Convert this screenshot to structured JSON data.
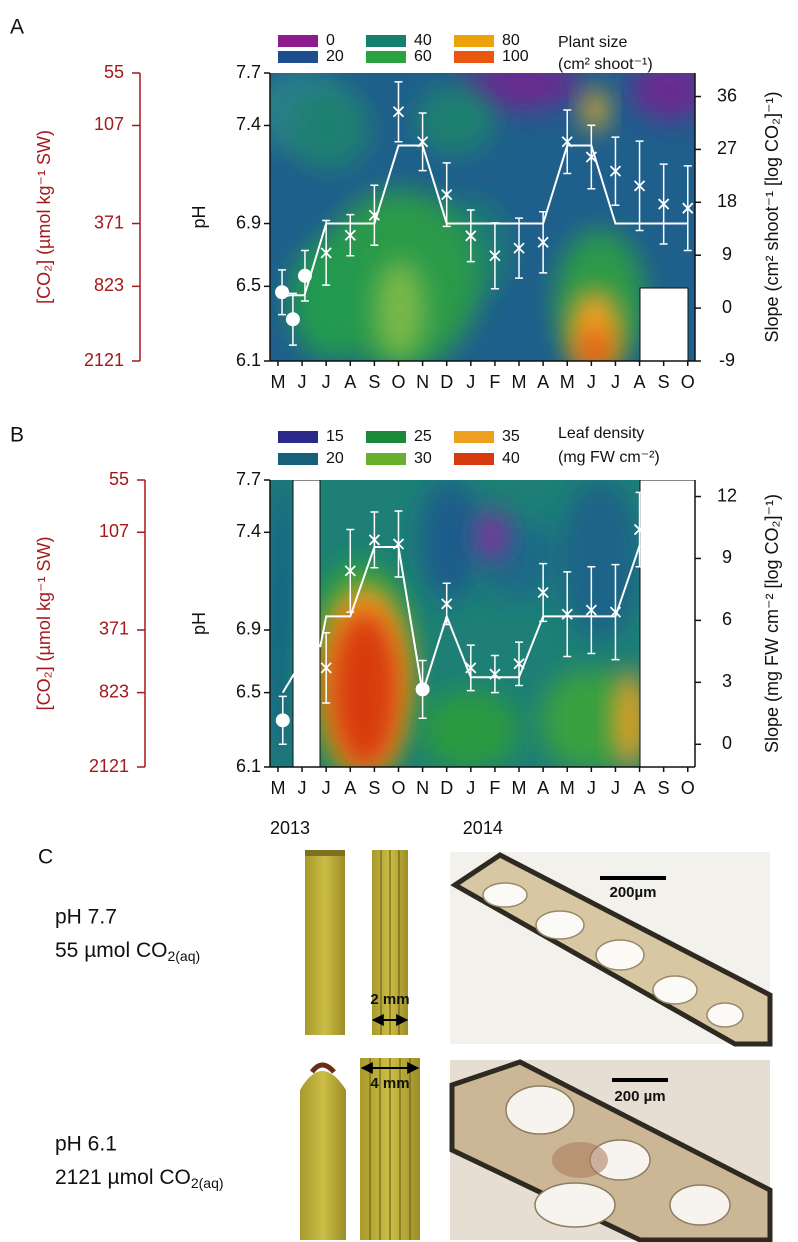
{
  "chart_data": [
    {
      "type": "line",
      "panel_label": "A",
      "legend_title": [
        "Plant size",
        "(cm² shoot⁻¹)"
      ],
      "scale": {
        "values": [
          0,
          20,
          40,
          60,
          80,
          100
        ],
        "colors": [
          "#8e1b8e",
          "#1d4f8f",
          "#177f6e",
          "#2aa23f",
          "#eea20a",
          "#e8560f"
        ]
      },
      "xlim": [
        -0.33,
        17.3
      ],
      "xticks": [
        {
          "value": 0,
          "label": "M"
        },
        {
          "value": 1,
          "label": "J"
        },
        {
          "value": 2,
          "label": "J"
        },
        {
          "value": 3,
          "label": "A"
        },
        {
          "value": 4,
          "label": "S"
        },
        {
          "value": 5,
          "label": "O"
        },
        {
          "value": 6,
          "label": "N"
        },
        {
          "value": 7,
          "label": "D"
        },
        {
          "value": 8,
          "label": "J"
        },
        {
          "value": 9,
          "label": "F"
        },
        {
          "value": 10,
          "label": "M"
        },
        {
          "value": 11,
          "label": "A"
        },
        {
          "value": 12,
          "label": "M"
        },
        {
          "value": 13,
          "label": "J"
        },
        {
          "value": 14,
          "label": "J"
        },
        {
          "value": 15,
          "label": "A"
        },
        {
          "value": 16,
          "label": "S"
        },
        {
          "value": 17,
          "label": "O"
        }
      ],
      "ylabel": "pH",
      "co2_label": "[CO₂] (µmol kg⁻¹ SW)",
      "log_y": true,
      "ylim": [
        2121,
        55
      ],
      "yticks": [
        55,
        107,
        371,
        823,
        2121
      ],
      "ph_ticks": [
        {
          "value": 55,
          "label": "7.7"
        },
        {
          "value": 107,
          "label": "7.4"
        },
        {
          "value": 371,
          "label": "6.9"
        },
        {
          "value": 823,
          "label": "6.5"
        },
        {
          "value": 2121,
          "label": "6.1"
        }
      ],
      "y2label": "Slope (cm² shoot⁻¹ [log CO₂]⁻¹)",
      "y2lim": [
        -9,
        40
      ],
      "y2ticks": [
        -9,
        0,
        9,
        18,
        27,
        36
      ],
      "series": [
        {
          "axis": "y2",
          "color": "#ffffff",
          "x": [
            0.17,
            0.62,
            1.12,
            2,
            3,
            4,
            5,
            6,
            7,
            8,
            9,
            10,
            11,
            12,
            13,
            14,
            15,
            16,
            17
          ],
          "values": [
            2.7,
            -1.9,
            5.5,
            9.4,
            12.4,
            15.8,
            33.4,
            28.3,
            19.3,
            12.3,
            8.9,
            10.2,
            11.2,
            28.3,
            25.7,
            23.3,
            20.8,
            17.7,
            17.0
          ],
          "errors": [
            3.8,
            4.4,
            4.3,
            5.5,
            3.5,
            5.1,
            5.1,
            4.9,
            5.4,
            4.4,
            5.6,
            5.1,
            5.2,
            5.4,
            5.4,
            5.8,
            7.6,
            6.8,
            7.2
          ],
          "markers": [
            "circle",
            "circle",
            "circle",
            "x",
            "x",
            "x",
            "x",
            "x",
            "x",
            "x",
            "x",
            "x",
            "x",
            "x",
            "x",
            "x",
            "x",
            "x",
            "x"
          ]
        },
        {
          "color": "#ffffff",
          "x": [
            0,
            0.5,
            1.1,
            2,
            3,
            4,
            5,
            6,
            7,
            8,
            9,
            10,
            11,
            12,
            13,
            14,
            15,
            16,
            17
          ],
          "values": [
            950,
            921,
            921,
            371,
            371,
            371,
            138,
            138,
            371,
            371,
            371,
            371,
            371,
            138,
            138,
            371,
            371,
            371,
            371
          ]
        }
      ]
    },
    {
      "type": "line",
      "panel_label": "B",
      "legend_title": [
        "Leaf density",
        "(mg FW cm⁻²)"
      ],
      "scale": {
        "values": [
          15,
          20,
          25,
          30,
          35,
          40
        ],
        "colors": [
          "#2b2a8c",
          "#16607a",
          "#1a8a3a",
          "#6ab030",
          "#f0a020",
          "#d83a10"
        ]
      },
      "xlim": [
        -0.33,
        17.3
      ],
      "xticks": [
        {
          "value": 0,
          "label": "M"
        },
        {
          "value": 1,
          "label": "J"
        },
        {
          "value": 2,
          "label": "J"
        },
        {
          "value": 3,
          "label": "A"
        },
        {
          "value": 4,
          "label": "S"
        },
        {
          "value": 5,
          "label": "O"
        },
        {
          "value": 6,
          "label": "N"
        },
        {
          "value": 7,
          "label": "D"
        },
        {
          "value": 8,
          "label": "J"
        },
        {
          "value": 9,
          "label": "F"
        },
        {
          "value": 10,
          "label": "M"
        },
        {
          "value": 11,
          "label": "A"
        },
        {
          "value": 12,
          "label": "M"
        },
        {
          "value": 13,
          "label": "J"
        },
        {
          "value": 14,
          "label": "J"
        },
        {
          "value": 15,
          "label": "A"
        },
        {
          "value": 16,
          "label": "S"
        },
        {
          "value": 17,
          "label": "O"
        }
      ],
      "year_labels": [
        {
          "value": 0,
          "label": "2013"
        },
        {
          "value": 8,
          "label": "2014"
        }
      ],
      "ylabel": "pH",
      "co2_label": "[CO₂] (µmol kg⁻¹ SW)",
      "log_y": true,
      "ylim": [
        2121,
        55
      ],
      "yticks": [
        55,
        107,
        371,
        823,
        2121
      ],
      "ph_ticks": [
        {
          "value": 55,
          "label": "7.7"
        },
        {
          "value": 107,
          "label": "7.4"
        },
        {
          "value": 371,
          "label": "6.9"
        },
        {
          "value": 823,
          "label": "6.5"
        },
        {
          "value": 2121,
          "label": "6.1"
        }
      ],
      "y2label": "Slope (mg FW cm⁻² [log CO₂]⁻¹)",
      "y2lim": [
        -1.1,
        12.8
      ],
      "y2ticks": [
        0,
        3,
        6,
        9,
        12
      ],
      "series": [
        {
          "axis": "y2",
          "color": "#ffffff",
          "x": [
            0.2,
            2,
            3,
            4,
            5,
            6,
            7,
            8,
            9,
            10,
            11,
            12,
            13,
            14,
            15
          ],
          "values": [
            1.16,
            3.7,
            8.4,
            9.9,
            9.7,
            2.66,
            6.8,
            3.7,
            3.4,
            3.9,
            7.35,
            6.3,
            6.5,
            6.4,
            10.4
          ],
          "errors": [
            1.16,
            1.7,
            2.0,
            1.35,
            1.6,
            1.4,
            1.0,
            1.1,
            0.9,
            1.05,
            1.4,
            2.05,
            2.1,
            2.3,
            1.8
          ],
          "markers": [
            "circle",
            "x",
            "x",
            "x",
            "x",
            "circle",
            "x",
            "x",
            "x",
            "x",
            "x",
            "x",
            "x",
            "x",
            "x"
          ]
        },
        {
          "color": "#ffffff",
          "x": [
            0.2,
            0.7,
            1.2,
            1.75,
            2,
            3,
            4,
            5,
            6,
            7,
            8,
            9,
            10,
            11,
            12,
            13,
            14,
            15
          ],
          "values": [
            823,
            638,
            null,
            462,
            312,
            312,
            129,
            129,
            823,
            312,
            677,
            677,
            677,
            312,
            312,
            312,
            312,
            127
          ]
        }
      ]
    }
  ],
  "panel_c": {
    "label": "C",
    "rows": [
      {
        "ph": "pH 7.7",
        "co2": {
          "text": "55 µmol CO",
          "sub": "2(aq)"
        },
        "leaf_width": "2 mm",
        "scale_bar": "200µm"
      },
      {
        "ph": "pH 6.1",
        "co2": {
          "text": "2121 µmol CO",
          "sub": "2(aq)"
        },
        "leaf_width": "4 mm",
        "scale_bar": "200 µm"
      }
    ]
  }
}
